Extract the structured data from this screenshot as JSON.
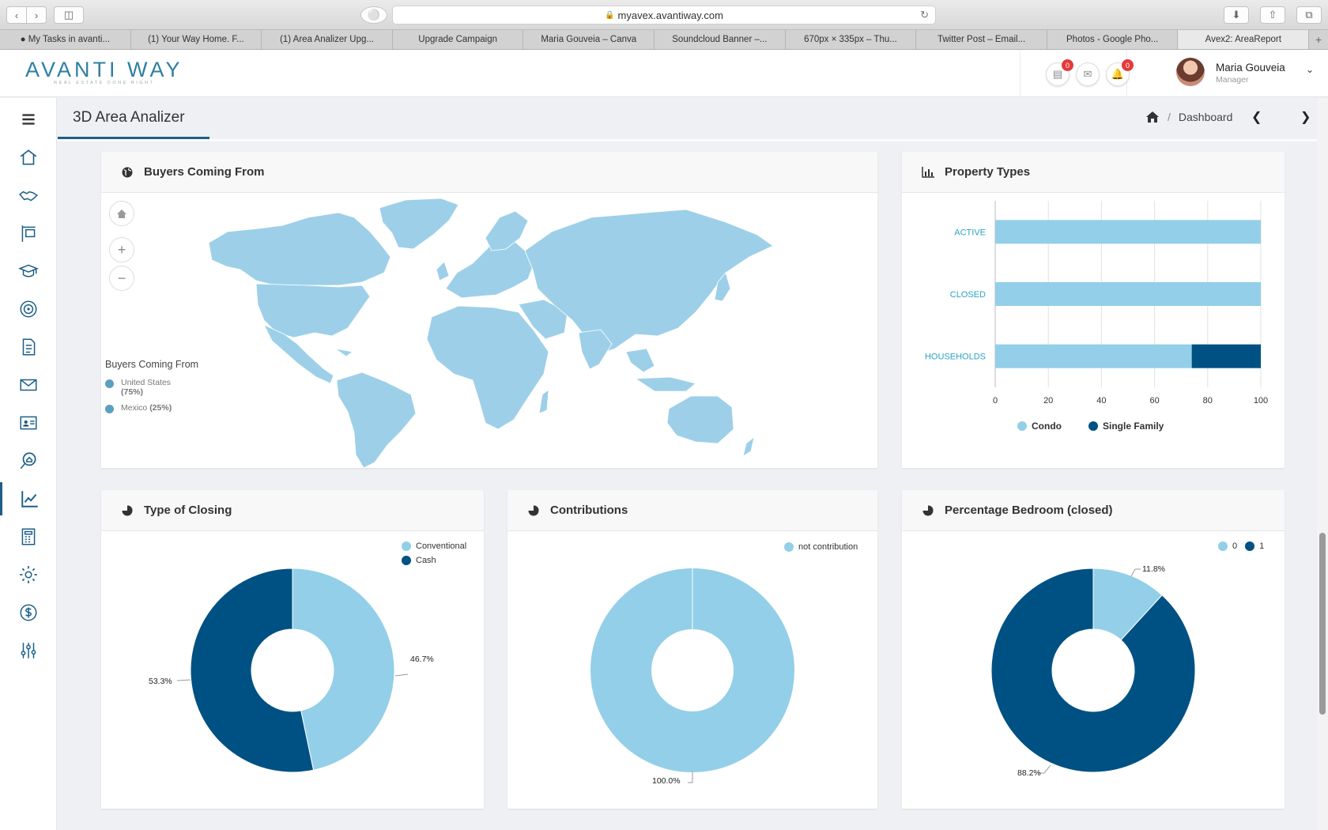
{
  "browser": {
    "url": "myavex.avantiway.com",
    "tabs": [
      {
        "label": "● My Tasks in avanti..."
      },
      {
        "label": "(1) Your Way Home. F..."
      },
      {
        "label": "(1) Area Analizer Upg..."
      },
      {
        "label": "Upgrade Campaign"
      },
      {
        "label": "Maria Gouveia – Canva"
      },
      {
        "label": "Soundcloud Banner –..."
      },
      {
        "label": "670px × 335px – Thu..."
      },
      {
        "label": "Twitter Post – Email..."
      },
      {
        "label": "Photos - Google Pho..."
      },
      {
        "label": "Avex2: AreaReport"
      }
    ]
  },
  "header": {
    "logo_text": "AVANTI WAY",
    "logo_tagline": "REAL ESTATE DONE RIGHT",
    "badge_listings": "0",
    "badge_notifications": "0",
    "user_name": "Maria Gouveia",
    "user_role": "Manager"
  },
  "page": {
    "title": "3D Area Analizer",
    "breadcrumb": "Dashboard"
  },
  "buyers_map": {
    "title": "Buyers Coming From",
    "legend_title": "Buyers Coming From",
    "legend": [
      {
        "label": "United States",
        "pct": "(75%)",
        "value": 75
      },
      {
        "label": "Mexico",
        "pct": "(25%)",
        "value": 25
      }
    ],
    "fill_color": "#9dd0e8"
  },
  "property_types": {
    "title": "Property Types",
    "legend": [
      "Condo",
      "Single Family"
    ],
    "colors": {
      "condo": "#93cfe8",
      "single_family": "#005183"
    },
    "label_color": "#2aa3c4"
  },
  "type_of_closing": {
    "title": "Type of Closing",
    "legend": [
      "Conventional",
      "Cash"
    ],
    "labels": {
      "conventional": "46.7%",
      "cash": "53.3%"
    }
  },
  "contributions": {
    "title": "Contributions",
    "legend": [
      "not contribution"
    ],
    "labels": {
      "not_contribution": "100.0%"
    }
  },
  "percentage_bedroom": {
    "title": "Percentage Bedroom (closed)",
    "legend": [
      "0",
      "1"
    ],
    "labels": {
      "b0": "11.8%",
      "b1": "88.2%"
    }
  },
  "chart_data": [
    {
      "type": "bar",
      "orientation": "horizontal",
      "stacked": true,
      "title": "Property Types",
      "categories": [
        "ACTIVE",
        "CLOSED",
        "HOUSEHOLDS"
      ],
      "series": [
        {
          "name": "Condo",
          "values": [
            100,
            100,
            74
          ]
        },
        {
          "name": "Single Family",
          "values": [
            0,
            0,
            26
          ]
        }
      ],
      "xlim": [
        0,
        100
      ],
      "xticks": [
        0,
        20,
        40,
        60,
        80,
        100
      ],
      "legend_position": "bottom",
      "grid": true
    },
    {
      "type": "pie",
      "donut": true,
      "title": "Type of Closing",
      "categories": [
        "Conventional",
        "Cash"
      ],
      "values": [
        46.7,
        53.3
      ],
      "legend_position": "top-right"
    },
    {
      "type": "pie",
      "donut": true,
      "title": "Contributions",
      "categories": [
        "not contribution"
      ],
      "values": [
        100.0
      ],
      "legend_position": "top-right"
    },
    {
      "type": "pie",
      "donut": true,
      "title": "Percentage Bedroom (closed)",
      "categories": [
        "0",
        "1"
      ],
      "values": [
        11.8,
        88.2
      ],
      "legend_position": "top-right"
    }
  ]
}
